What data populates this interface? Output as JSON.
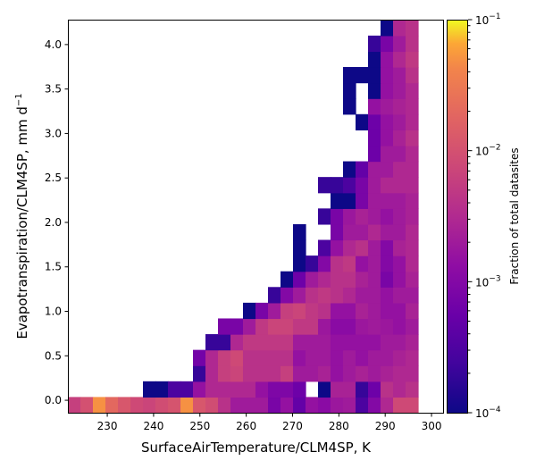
{
  "chart_data": {
    "type": "heatmap",
    "title": "",
    "xlabel": "SurfaceAirTemperature/CLM4SP,  K",
    "ylabel_main": "Evapotranspiration/CLM4SP,  mm d",
    "ylabel_sup": "−1",
    "colorbar_label": "Fraction of total datasites",
    "colormap": "plasma",
    "color_scale": "log",
    "color_range": [
      0.0001,
      0.1
    ],
    "colorbar_ticks": [
      {
        "value": 0.1,
        "base": "10",
        "exp": "−1"
      },
      {
        "value": 0.01,
        "base": "10",
        "exp": "−2"
      },
      {
        "value": 0.001,
        "base": "10",
        "exp": "−3"
      },
      {
        "value": 0.0001,
        "base": "10",
        "exp": "−4"
      }
    ],
    "xlim": [
      221.5,
      302.5
    ],
    "ylim": [
      -0.14,
      4.28
    ],
    "x_ticks": [
      230,
      240,
      250,
      260,
      270,
      280,
      290,
      300
    ],
    "x_tick_labels": [
      "230",
      "240",
      "250",
      "260",
      "270",
      "280",
      "290",
      "300"
    ],
    "y_ticks": [
      0.0,
      0.5,
      1.0,
      1.5,
      2.0,
      2.5,
      3.0,
      3.5,
      4.0
    ],
    "y_tick_labels": [
      "0.0",
      "0.5",
      "1.0",
      "1.5",
      "2.0",
      "2.5",
      "3.0",
      "3.5",
      "4.0"
    ],
    "x_bin_edges_start": 221.5,
    "x_bin_width": 2.7,
    "y_bin_edges_start": -0.14,
    "y_bin_width": 0.1767,
    "cells": [
      [
        0,
        0,
        0.006
      ],
      [
        1,
        0,
        0.01
      ],
      [
        2,
        0,
        0.05
      ],
      [
        3,
        0,
        0.02
      ],
      [
        4,
        0,
        0.012
      ],
      [
        5,
        0,
        0.008
      ],
      [
        6,
        0,
        0.007
      ],
      [
        7,
        0,
        0.009
      ],
      [
        8,
        0,
        0.011
      ],
      [
        9,
        0,
        0.05
      ],
      [
        10,
        0,
        0.012
      ],
      [
        11,
        0,
        0.009
      ],
      [
        12,
        0,
        0.004
      ],
      [
        13,
        0,
        0.002
      ],
      [
        14,
        0,
        0.002
      ],
      [
        15,
        0,
        0.002
      ],
      [
        16,
        0,
        0.0008
      ],
      [
        17,
        0,
        0.0015
      ],
      [
        18,
        0,
        0.0005
      ],
      [
        19,
        0,
        0.0015
      ],
      [
        20,
        0,
        0.0012
      ],
      [
        21,
        0,
        0.0018
      ],
      [
        22,
        0,
        0.002
      ],
      [
        23,
        0,
        0.0003
      ],
      [
        24,
        0,
        0.001
      ],
      [
        25,
        0,
        0.003
      ],
      [
        26,
        0,
        0.008
      ],
      [
        27,
        0,
        0.008
      ],
      [
        6,
        1,
        0.0001
      ],
      [
        7,
        1,
        0.0001
      ],
      [
        8,
        1,
        0.0003
      ],
      [
        9,
        1,
        0.0003
      ],
      [
        10,
        1,
        0.0015
      ],
      [
        11,
        1,
        0.003
      ],
      [
        12,
        1,
        0.003
      ],
      [
        13,
        1,
        0.003
      ],
      [
        14,
        1,
        0.003
      ],
      [
        15,
        1,
        0.0015
      ],
      [
        16,
        1,
        0.0009
      ],
      [
        17,
        1,
        0.0009
      ],
      [
        18,
        1,
        0.0006
      ],
      [
        20,
        1,
        0.0001
      ],
      [
        21,
        1,
        0.0025
      ],
      [
        22,
        1,
        0.0025
      ],
      [
        23,
        1,
        0.0002
      ],
      [
        24,
        1,
        0.0006
      ],
      [
        25,
        1,
        0.004
      ],
      [
        26,
        1,
        0.003
      ],
      [
        27,
        1,
        0.004
      ],
      [
        10,
        2,
        0.0002
      ],
      [
        11,
        2,
        0.003
      ],
      [
        12,
        2,
        0.006
      ],
      [
        13,
        2,
        0.007
      ],
      [
        14,
        2,
        0.004
      ],
      [
        15,
        2,
        0.004
      ],
      [
        16,
        2,
        0.004
      ],
      [
        17,
        2,
        0.006
      ],
      [
        18,
        2,
        0.002
      ],
      [
        19,
        2,
        0.002
      ],
      [
        20,
        2,
        0.0025
      ],
      [
        21,
        2,
        0.0015
      ],
      [
        22,
        2,
        0.002
      ],
      [
        23,
        2,
        0.0025
      ],
      [
        24,
        2,
        0.002
      ],
      [
        25,
        2,
        0.0025
      ],
      [
        26,
        2,
        0.003
      ],
      [
        27,
        2,
        0.003
      ],
      [
        10,
        3,
        0.0007
      ],
      [
        11,
        3,
        0.003
      ],
      [
        12,
        3,
        0.006
      ],
      [
        13,
        3,
        0.008
      ],
      [
        14,
        3,
        0.004
      ],
      [
        15,
        3,
        0.004
      ],
      [
        16,
        3,
        0.004
      ],
      [
        17,
        3,
        0.004
      ],
      [
        18,
        3,
        0.0015
      ],
      [
        19,
        3,
        0.002
      ],
      [
        20,
        3,
        0.002
      ],
      [
        21,
        3,
        0.0015
      ],
      [
        22,
        3,
        0.002
      ],
      [
        23,
        3,
        0.0015
      ],
      [
        24,
        3,
        0.002
      ],
      [
        25,
        3,
        0.002
      ],
      [
        26,
        3,
        0.0025
      ],
      [
        27,
        3,
        0.003
      ],
      [
        11,
        4,
        0.0002
      ],
      [
        12,
        4,
        0.0002
      ],
      [
        13,
        4,
        0.003
      ],
      [
        14,
        4,
        0.005
      ],
      [
        15,
        4,
        0.005
      ],
      [
        16,
        4,
        0.005
      ],
      [
        17,
        4,
        0.005
      ],
      [
        18,
        4,
        0.002
      ],
      [
        19,
        4,
        0.002
      ],
      [
        20,
        4,
        0.002
      ],
      [
        21,
        4,
        0.0015
      ],
      [
        22,
        4,
        0.0015
      ],
      [
        23,
        4,
        0.0015
      ],
      [
        24,
        4,
        0.0015
      ],
      [
        25,
        4,
        0.002
      ],
      [
        26,
        4,
        0.002
      ],
      [
        27,
        4,
        0.0025
      ],
      [
        12,
        5,
        0.0008
      ],
      [
        13,
        5,
        0.0008
      ],
      [
        14,
        5,
        0.002
      ],
      [
        15,
        5,
        0.005
      ],
      [
        16,
        5,
        0.007
      ],
      [
        17,
        5,
        0.007
      ],
      [
        18,
        5,
        0.005
      ],
      [
        19,
        5,
        0.005
      ],
      [
        20,
        5,
        0.0018
      ],
      [
        21,
        5,
        0.0012
      ],
      [
        22,
        5,
        0.0012
      ],
      [
        23,
        5,
        0.0018
      ],
      [
        24,
        5,
        0.002
      ],
      [
        25,
        5,
        0.0018
      ],
      [
        26,
        5,
        0.0015
      ],
      [
        27,
        5,
        0.002
      ],
      [
        14,
        6,
        0.0001
      ],
      [
        15,
        6,
        0.0008
      ],
      [
        16,
        6,
        0.002
      ],
      [
        17,
        6,
        0.006
      ],
      [
        18,
        6,
        0.007
      ],
      [
        19,
        6,
        0.005
      ],
      [
        20,
        6,
        0.004
      ],
      [
        21,
        6,
        0.0015
      ],
      [
        22,
        6,
        0.0015
      ],
      [
        23,
        6,
        0.0025
      ],
      [
        24,
        6,
        0.002
      ],
      [
        25,
        6,
        0.0015
      ],
      [
        26,
        6,
        0.0015
      ],
      [
        27,
        6,
        0.0025
      ],
      [
        16,
        7,
        0.0002
      ],
      [
        17,
        7,
        0.001
      ],
      [
        18,
        7,
        0.002
      ],
      [
        19,
        7,
        0.004
      ],
      [
        20,
        7,
        0.005
      ],
      [
        21,
        7,
        0.004
      ],
      [
        22,
        7,
        0.003
      ],
      [
        23,
        7,
        0.002
      ],
      [
        24,
        7,
        0.002
      ],
      [
        25,
        7,
        0.0015
      ],
      [
        26,
        7,
        0.002
      ],
      [
        27,
        7,
        0.002
      ],
      [
        17,
        8,
        0.0001
      ],
      [
        18,
        8,
        0.0006
      ],
      [
        19,
        8,
        0.002
      ],
      [
        20,
        8,
        0.003
      ],
      [
        21,
        8,
        0.004
      ],
      [
        22,
        8,
        0.004
      ],
      [
        23,
        8,
        0.0025
      ],
      [
        24,
        8,
        0.002
      ],
      [
        25,
        8,
        0.0008
      ],
      [
        26,
        8,
        0.0015
      ],
      [
        27,
        8,
        0.0025
      ],
      [
        18,
        9,
        0.0001
      ],
      [
        19,
        9,
        0.0002
      ],
      [
        20,
        9,
        0.001
      ],
      [
        21,
        9,
        0.004
      ],
      [
        22,
        9,
        0.005
      ],
      [
        23,
        9,
        0.0015
      ],
      [
        24,
        9,
        0.002
      ],
      [
        25,
        9,
        0.001
      ],
      [
        26,
        9,
        0.0015
      ],
      [
        27,
        9,
        0.003
      ],
      [
        18,
        10,
        0.0001
      ],
      [
        20,
        10,
        0.0003
      ],
      [
        21,
        10,
        0.0015
      ],
      [
        22,
        10,
        0.003
      ],
      [
        23,
        10,
        0.004
      ],
      [
        24,
        10,
        0.002
      ],
      [
        25,
        10,
        0.001
      ],
      [
        26,
        10,
        0.0025
      ],
      [
        27,
        10,
        0.003
      ],
      [
        18,
        11,
        0.0001
      ],
      [
        21,
        11,
        0.0008
      ],
      [
        22,
        11,
        0.002
      ],
      [
        23,
        11,
        0.002
      ],
      [
        24,
        11,
        0.003
      ],
      [
        25,
        11,
        0.002
      ],
      [
        26,
        11,
        0.002
      ],
      [
        27,
        11,
        0.003
      ],
      [
        20,
        12,
        0.0002
      ],
      [
        21,
        12,
        0.0008
      ],
      [
        22,
        12,
        0.0018
      ],
      [
        23,
        12,
        0.0025
      ],
      [
        24,
        12,
        0.002
      ],
      [
        25,
        12,
        0.0015
      ],
      [
        26,
        12,
        0.002
      ],
      [
        27,
        12,
        0.0025
      ],
      [
        21,
        13,
        0.0001
      ],
      [
        22,
        13,
        0.0001
      ],
      [
        23,
        13,
        0.0008
      ],
      [
        24,
        13,
        0.002
      ],
      [
        25,
        13,
        0.002
      ],
      [
        26,
        13,
        0.002
      ],
      [
        27,
        13,
        0.0025
      ],
      [
        20,
        14,
        0.0002
      ],
      [
        21,
        14,
        0.0002
      ],
      [
        22,
        14,
        0.0003
      ],
      [
        23,
        14,
        0.0008
      ],
      [
        24,
        14,
        0.002
      ],
      [
        25,
        14,
        0.003
      ],
      [
        26,
        14,
        0.003
      ],
      [
        27,
        14,
        0.003
      ],
      [
        22,
        15,
        0.0001
      ],
      [
        23,
        15,
        0.0005
      ],
      [
        24,
        15,
        0.002
      ],
      [
        25,
        15,
        0.002
      ],
      [
        26,
        15,
        0.003
      ],
      [
        27,
        15,
        0.003
      ],
      [
        24,
        16,
        0.0006
      ],
      [
        25,
        16,
        0.002
      ],
      [
        26,
        16,
        0.002
      ],
      [
        27,
        16,
        0.003
      ],
      [
        24,
        17,
        0.0006
      ],
      [
        25,
        17,
        0.0015
      ],
      [
        26,
        17,
        0.0025
      ],
      [
        27,
        17,
        0.004
      ],
      [
        23,
        18,
        0.0001
      ],
      [
        24,
        18,
        0.0006
      ],
      [
        25,
        18,
        0.0015
      ],
      [
        26,
        18,
        0.002
      ],
      [
        27,
        18,
        0.003
      ],
      [
        22,
        19,
        0.0001
      ],
      [
        24,
        19,
        0.0015
      ],
      [
        25,
        19,
        0.002
      ],
      [
        26,
        19,
        0.0025
      ],
      [
        27,
        19,
        0.003
      ],
      [
        22,
        20,
        0.0001
      ],
      [
        24,
        20,
        0.0001
      ],
      [
        25,
        20,
        0.0015
      ],
      [
        26,
        20,
        0.002
      ],
      [
        27,
        20,
        0.003
      ],
      [
        22,
        21,
        0.0001
      ],
      [
        23,
        21,
        0.0001
      ],
      [
        24,
        21,
        0.0001
      ],
      [
        25,
        21,
        0.0015
      ],
      [
        26,
        21,
        0.002
      ],
      [
        27,
        21,
        0.004
      ],
      [
        24,
        22,
        0.0001
      ],
      [
        25,
        22,
        0.0015
      ],
      [
        26,
        22,
        0.003
      ],
      [
        27,
        22,
        0.005
      ],
      [
        24,
        23,
        0.0002
      ],
      [
        25,
        23,
        0.0008
      ],
      [
        26,
        23,
        0.002
      ],
      [
        27,
        23,
        0.004
      ],
      [
        25,
        24,
        0.0001
      ],
      [
        26,
        24,
        0.003
      ],
      [
        27,
        24,
        0.004
      ]
    ]
  }
}
